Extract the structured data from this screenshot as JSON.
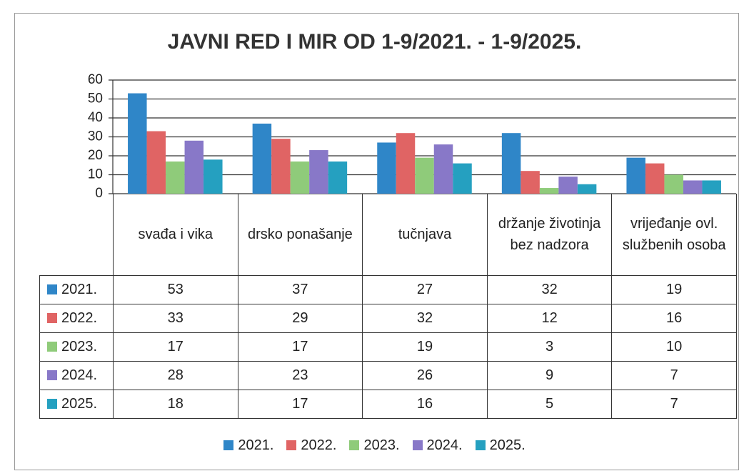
{
  "chart_data": {
    "type": "bar",
    "title": "JAVNI RED I MIR OD 1-9/2021. - 1-9/2025.",
    "categories": [
      "svađa i vika",
      "drsko ponašanje",
      "tučnjava",
      "držanje životinja bez nadzora",
      "vrijeđanje ovl. službenih osoba"
    ],
    "series": [
      {
        "name": "2021.",
        "color": "#2f86c8",
        "values": [
          53,
          37,
          27,
          32,
          19
        ]
      },
      {
        "name": "2022.",
        "color": "#e06464",
        "values": [
          33,
          29,
          32,
          12,
          16
        ]
      },
      {
        "name": "2023.",
        "color": "#8fcb7a",
        "values": [
          17,
          17,
          19,
          3,
          10
        ]
      },
      {
        "name": "2024.",
        "color": "#8878c8",
        "values": [
          28,
          23,
          26,
          9,
          7
        ]
      },
      {
        "name": "2025.",
        "color": "#25a0c0",
        "values": [
          18,
          17,
          16,
          5,
          7
        ]
      }
    ],
    "ylim": [
      0,
      60
    ],
    "yticks": [
      0,
      10,
      20,
      30,
      40,
      50,
      60
    ],
    "grid": true
  }
}
